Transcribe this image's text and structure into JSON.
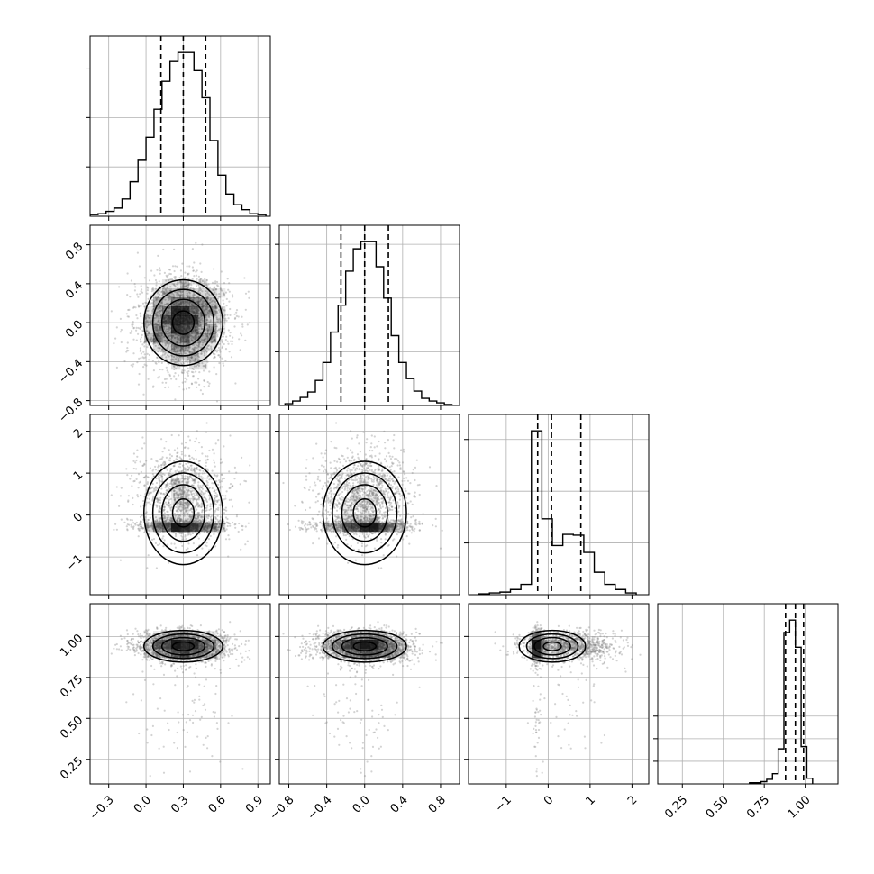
{
  "chart_data": {
    "type": "corner",
    "title": "",
    "n_params": 4,
    "params": [
      {
        "xlim": [
          -0.45,
          1.0
        ],
        "ticks": [
          -0.3,
          0.0,
          0.3,
          0.6,
          0.9
        ],
        "tick_labels": [
          "−0.3",
          "0.0",
          "0.3",
          "0.6",
          "0.9"
        ],
        "quantiles": [
          0.12,
          0.3,
          0.48
        ],
        "hist_bins": [
          -0.45,
          -0.3857,
          -0.3214,
          -0.2571,
          -0.1929,
          -0.1286,
          -0.0643,
          0.0,
          0.0643,
          0.1286,
          0.1929,
          0.2571,
          0.3214,
          0.3857,
          0.45,
          0.5143,
          0.5786,
          0.6429,
          0.7071,
          0.7714,
          0.8357,
          0.9,
          0.9643
        ],
        "hist_counts": [
          2,
          3,
          6,
          10,
          21,
          42,
          68,
          96,
          130,
          164,
          188,
          199,
          199,
          177,
          144,
          92,
          50,
          27,
          14,
          8,
          3,
          2
        ]
      },
      {
        "xlim": [
          -0.9,
          1.0
        ],
        "ticks": [
          -0.8,
          -0.4,
          0.0,
          0.4,
          0.8
        ],
        "tick_labels": [
          "−0.8",
          "−0.4",
          "0.0",
          "0.4",
          "0.8"
        ],
        "quantiles": [
          -0.25,
          0.0,
          0.25
        ],
        "hist_bins": [
          -0.84,
          -0.76,
          -0.68,
          -0.6,
          -0.52,
          -0.44,
          -0.36,
          -0.28,
          -0.2,
          -0.12,
          -0.04,
          0.04,
          0.12,
          0.2,
          0.28,
          0.36,
          0.44,
          0.52,
          0.6,
          0.68,
          0.76,
          0.84,
          0.92
        ],
        "hist_counts": [
          2,
          5,
          9,
          15,
          28,
          48,
          82,
          112,
          150,
          175,
          183,
          183,
          155,
          120,
          78,
          48,
          30,
          16,
          8,
          5,
          3,
          1
        ]
      },
      {
        "xlim": [
          -1.9,
          2.4
        ],
        "ticks": [
          -1,
          0,
          1,
          2
        ],
        "tick_labels": [
          "−1",
          "0",
          "1",
          "2"
        ],
        "quantiles": [
          -0.25,
          0.08,
          0.78
        ],
        "hist_bins": [
          -1.65,
          -1.4,
          -1.15,
          -0.9,
          -0.65,
          -0.4,
          -0.15,
          0.1,
          0.35,
          0.6,
          0.85,
          1.1,
          1.35,
          1.6,
          1.85,
          2.1
        ],
        "hist_counts": [
          1,
          2,
          3,
          6,
          12,
          190,
          88,
          57,
          70,
          69,
          49,
          26,
          12,
          6,
          2
        ]
      },
      {
        "xlim": [
          0.1,
          1.2
        ],
        "ticks": [
          0.25,
          0.5,
          0.75,
          1.0
        ],
        "tick_labels": [
          "0.25",
          "0.50",
          "0.75",
          "1.00"
        ],
        "quantiles": [
          0.88,
          0.94,
          0.99
        ],
        "hist_bins": [
          0.66,
          0.695,
          0.73,
          0.765,
          0.8,
          0.835,
          0.87,
          0.905,
          0.94,
          0.975,
          1.01,
          1.045
        ],
        "hist_counts": [
          1,
          1,
          2,
          4,
          9,
          31,
          134,
          145,
          121,
          33,
          5
        ]
      }
    ],
    "row_ylims": [
      null,
      [
        -0.85,
        1.0
      ],
      [
        -1.9,
        2.4
      ],
      [
        0.1,
        1.2
      ]
    ],
    "row_yticks": [
      null,
      [
        -0.8,
        -0.4,
        0.0,
        0.4,
        0.8
      ],
      [
        -1,
        0,
        1,
        2
      ],
      [
        0.25,
        0.5,
        0.75,
        1.0
      ]
    ],
    "row_ytick_labels": [
      null,
      [
        "−0.8",
        "−0.4",
        "0.0",
        "0.4",
        "0.8"
      ],
      [
        "−1",
        "0",
        "1",
        "2"
      ],
      [
        "0.25",
        "0.50",
        "0.75",
        "1.00"
      ]
    ],
    "hist_yticks_counts": [
      [
        60,
        120,
        180
      ],
      [
        60,
        120,
        180
      ],
      [
        60,
        120,
        180
      ],
      [
        20,
        40,
        60
      ]
    ],
    "scatter_points_color": "#808080",
    "contour_color": "#000000",
    "density_color": "#000000",
    "quantile_line_style": "dashed",
    "grid": true,
    "axes_label_xlabel": "",
    "axes_label_ylabel": ""
  }
}
